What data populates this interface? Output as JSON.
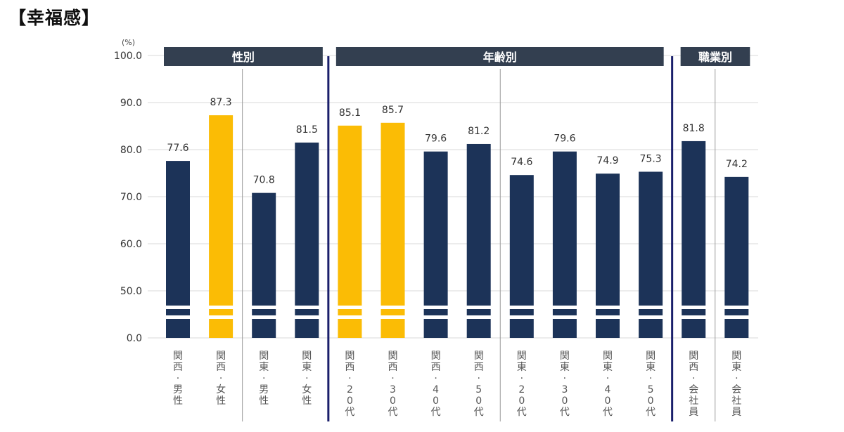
{
  "title": "【幸福感】",
  "chart_data": {
    "type": "bar",
    "unit": "(%)",
    "ylim": [
      0,
      100
    ],
    "yticks": [
      "0.0",
      "50.0",
      "60.0",
      "70.0",
      "80.0",
      "90.0",
      "100.0"
    ],
    "axis_break": true,
    "grid": true,
    "groups": [
      {
        "label": "性別",
        "start": 0,
        "end": 3
      },
      {
        "label": "年齢別",
        "start": 4,
        "end": 11
      },
      {
        "label": "職業別",
        "start": 12,
        "end": 13
      }
    ],
    "categories": [
      "関西:男性",
      "関西:女性",
      "関東:男性",
      "関東:女性",
      "関西:20代",
      "関西:30代",
      "関西:40代",
      "関西:50代",
      "関東:20代",
      "関東:30代",
      "関東:40代",
      "関東:50代",
      "関西:会社員",
      "関東:会社員"
    ],
    "values": [
      77.6,
      87.3,
      70.8,
      81.5,
      85.1,
      85.7,
      79.6,
      81.2,
      74.6,
      79.6,
      74.9,
      75.3,
      81.8,
      74.2
    ],
    "value_labels": [
      "77.6",
      "87.3",
      "70.8",
      "81.5",
      "85.1",
      "85.7",
      "79.6",
      "81.2",
      "74.6",
      "79.6",
      "74.9",
      "75.3",
      "81.8",
      "74.2"
    ],
    "highlight": [
      false,
      true,
      false,
      false,
      true,
      true,
      false,
      false,
      false,
      false,
      false,
      false,
      false,
      false
    ],
    "colors": {
      "bar": "#1c3358",
      "highlight": "#fbbc05",
      "header": "#333f50",
      "group_divider": "#1a1f6b",
      "sub_divider": "#9a9a9a",
      "grid": "#d9d9d9"
    }
  }
}
